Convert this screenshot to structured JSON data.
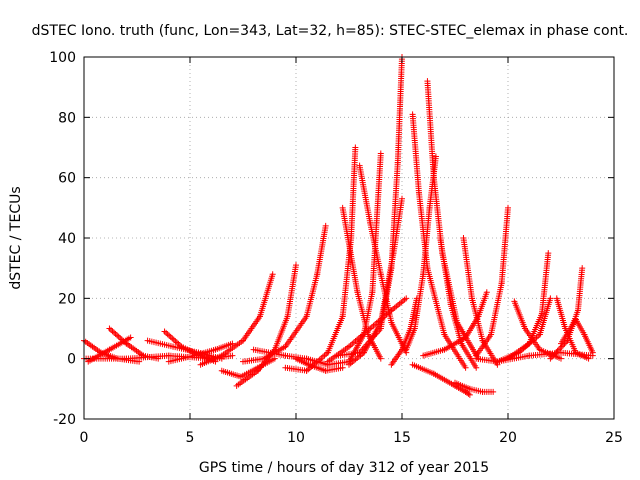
{
  "chart_data": {
    "type": "scatter",
    "title": "dSTEC Iono. truth (func, Lon=343, Lat=32, h=85): STEC-STEC_elemax in phase cont.",
    "xlabel": "GPS time / hours of day 312 of year 2015",
    "ylabel": "dSTEC  / TECUs",
    "xlim": [
      0,
      25
    ],
    "ylim": [
      -20,
      100
    ],
    "x_ticks": [
      0,
      5,
      10,
      15,
      20,
      25
    ],
    "y_ticks": [
      -20,
      0,
      20,
      40,
      60,
      80,
      100
    ],
    "grid": true,
    "marker": "+",
    "color": "#ff0000",
    "series": [
      {
        "x": [
          0.0,
          0.8,
          1.6,
          2.6
        ],
        "y": [
          6,
          2,
          0,
          -1
        ]
      },
      {
        "x": [
          1.2,
          2.0,
          2.8,
          3.5
        ],
        "y": [
          10,
          5,
          1,
          0
        ]
      },
      {
        "x": [
          0.2,
          1.2,
          2.2
        ],
        "y": [
          -1,
          3,
          7
        ]
      },
      {
        "x": [
          3.0,
          4.2,
          5.4,
          6.5
        ],
        "y": [
          6,
          4,
          2,
          0
        ]
      },
      {
        "x": [
          3.8,
          4.6,
          5.5,
          6.2
        ],
        "y": [
          9,
          4,
          1,
          -1
        ]
      },
      {
        "x": [
          4.0,
          5.2,
          6.2,
          7.0
        ],
        "y": [
          -1,
          1,
          3,
          5
        ]
      },
      {
        "x": [
          0.0,
          2.0,
          4.0,
          6.0,
          7.0
        ],
        "y": [
          0,
          0,
          1,
          0,
          1
        ]
      },
      {
        "x": [
          5.5,
          6.5,
          7.5,
          8.3,
          8.9
        ],
        "y": [
          -2,
          1,
          6,
          14,
          28
        ]
      },
      {
        "x": [
          7.2,
          8.2,
          9.0,
          9.6,
          10.0
        ],
        "y": [
          -9,
          -4,
          3,
          14,
          31
        ]
      },
      {
        "x": [
          6.5,
          7.4,
          8.2,
          9.0
        ],
        "y": [
          -4,
          -6,
          -3,
          0
        ]
      },
      {
        "x": [
          7.5,
          8.5,
          9.5,
          10.5,
          11.0,
          11.4
        ],
        "y": [
          -1,
          0,
          4,
          14,
          28,
          44
        ]
      },
      {
        "x": [
          9.5,
          10.5,
          11.5,
          12.2,
          12.6,
          12.8
        ],
        "y": [
          -3,
          -4,
          2,
          14,
          40,
          70
        ]
      },
      {
        "x": [
          8.0,
          9.5,
          10.5,
          11.5
        ],
        "y": [
          3,
          1,
          0,
          -2
        ]
      },
      {
        "x": [
          10.0,
          10.6,
          11.4,
          12.2
        ],
        "y": [
          0,
          -2,
          -4,
          -3
        ]
      },
      {
        "x": [
          12.2,
          12.5,
          12.9,
          13.4,
          14.0
        ],
        "y": [
          50,
          38,
          22,
          8,
          0
        ]
      },
      {
        "x": [
          11.5,
          12.5,
          13.2,
          13.6,
          13.8,
          14.0
        ],
        "y": [
          -2,
          -1,
          8,
          22,
          45,
          68
        ]
      },
      {
        "x": [
          13.0,
          13.5,
          14.0,
          14.5,
          15.2
        ],
        "y": [
          64,
          45,
          28,
          12,
          2
        ]
      },
      {
        "x": [
          12.0,
          13.0,
          14.0,
          14.5,
          14.8,
          15.0
        ],
        "y": [
          1,
          2,
          10,
          30,
          65,
          100
        ]
      },
      {
        "x": [
          12.5,
          13.2,
          14.0,
          14.6,
          15.0
        ],
        "y": [
          -2,
          2,
          12,
          35,
          53
        ]
      },
      {
        "x": [
          11.5,
          12.5,
          13.5,
          14.5,
          15.2
        ],
        "y": [
          -1,
          4,
          10,
          16,
          20
        ]
      },
      {
        "x": [
          14.5,
          15.0,
          15.4,
          15.7
        ],
        "y": [
          -2,
          3,
          10,
          20
        ]
      },
      {
        "x": [
          15.5,
          15.8,
          16.2,
          17.0,
          18.0
        ],
        "y": [
          81,
          55,
          30,
          8,
          -3
        ]
      },
      {
        "x": [
          16.2,
          16.5,
          16.9,
          17.6,
          18.6
        ],
        "y": [
          92,
          60,
          35,
          12,
          0
        ]
      },
      {
        "x": [
          15.2,
          15.6,
          16.0,
          16.3,
          16.6
        ],
        "y": [
          3,
          10,
          28,
          50,
          67
        ]
      },
      {
        "x": [
          16.8,
          17.3,
          17.8,
          18.5
        ],
        "y": [
          40,
          18,
          5,
          -3
        ]
      },
      {
        "x": [
          17.9,
          18.3,
          18.8,
          19.5
        ],
        "y": [
          40,
          20,
          6,
          -2
        ]
      },
      {
        "x": [
          15.5,
          16.5,
          17.5,
          18.0,
          18.2
        ],
        "y": [
          -2,
          -5,
          -9,
          -11,
          -12
        ]
      },
      {
        "x": [
          17.5,
          18.2,
          18.8,
          19.3
        ],
        "y": [
          -8,
          -10,
          -11,
          -11
        ]
      },
      {
        "x": [
          16.0,
          17.0,
          18.0,
          18.6,
          19.0
        ],
        "y": [
          1,
          3,
          7,
          14,
          22
        ]
      },
      {
        "x": [
          18.5,
          19.2,
          19.7,
          20.0
        ],
        "y": [
          1,
          8,
          25,
          50
        ]
      },
      {
        "x": [
          18.5,
          19.5,
          20.5,
          21.5,
          22.0
        ],
        "y": [
          0,
          -1,
          2,
          8,
          20
        ]
      },
      {
        "x": [
          20.3,
          20.8,
          21.5,
          22.5
        ],
        "y": [
          19,
          10,
          3,
          0
        ]
      },
      {
        "x": [
          20.0,
          21.0,
          21.6,
          21.9
        ],
        "y": [
          0,
          5,
          15,
          35
        ]
      },
      {
        "x": [
          22.3,
          22.7,
          23.2,
          23.8
        ],
        "y": [
          20,
          10,
          2,
          0
        ]
      },
      {
        "x": [
          22.0,
          22.8,
          23.3,
          23.5
        ],
        "y": [
          0,
          6,
          16,
          30
        ]
      },
      {
        "x": [
          22.5,
          23.2,
          23.6,
          24.0
        ],
        "y": [
          5,
          13,
          8,
          2
        ]
      },
      {
        "x": [
          19.5,
          21.0,
          22.5,
          24.0
        ],
        "y": [
          -1,
          1,
          2,
          1
        ]
      }
    ]
  }
}
